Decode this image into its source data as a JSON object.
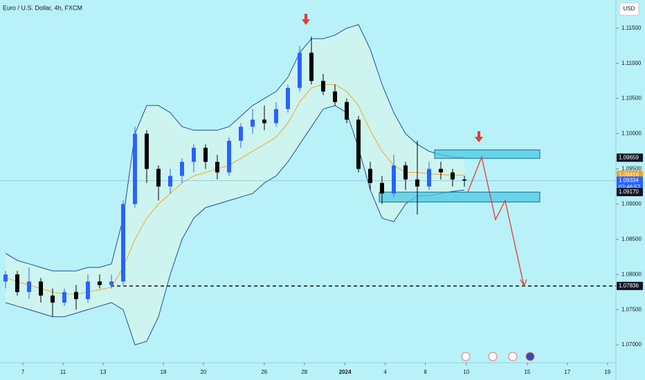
{
  "chart_data": {
    "type": "candlestick",
    "title": "Euro / U.S. Dollar, 4h, FXCM",
    "currency": "USD",
    "ylim": [
      1.065,
      1.119
    ],
    "yticks": [
      {
        "value": 1.07,
        "label": "1.07000"
      },
      {
        "value": 1.075,
        "label": "1.07500"
      },
      {
        "value": 1.08,
        "label": "1.08000"
      },
      {
        "value": 1.085,
        "label": "1.08500"
      },
      {
        "value": 1.09,
        "label": "1.09000"
      },
      {
        "value": 1.095,
        "label": "1.09500"
      },
      {
        "value": 1.1,
        "label": "1.10000"
      },
      {
        "value": 1.105,
        "label": "1.10500"
      },
      {
        "value": 1.11,
        "label": "1.11000"
      },
      {
        "value": 1.115,
        "label": "1.11500"
      }
    ],
    "xlim": [
      0,
      30.7
    ],
    "xticks": [
      {
        "value": 1.14,
        "label": "7"
      },
      {
        "value": 3.14,
        "label": "11"
      },
      {
        "value": 5.14,
        "label": "13"
      },
      {
        "value": 8.14,
        "label": "18"
      },
      {
        "value": 10.14,
        "label": "20"
      },
      {
        "value": 13.17,
        "label": "26"
      },
      {
        "value": 15.17,
        "label": "28"
      },
      {
        "value": 17.2,
        "label": "2024"
      },
      {
        "value": 19.2,
        "label": "4"
      },
      {
        "value": 21.2,
        "label": "8"
      },
      {
        "value": 23.24,
        "label": "10"
      },
      {
        "value": 26.28,
        "label": "15"
      },
      {
        "value": 28.28,
        "label": "17"
      },
      {
        "value": 30.28,
        "label": "19"
      }
    ],
    "up_color": "#2962ff",
    "down_color": "#000000",
    "open": [
      1.079,
      1.08,
      1.0775,
      1.079,
      1.077,
      1.076,
      1.0775,
      1.0765,
      1.079,
      1.0785,
      1.079,
      1.09,
      1.1,
      1.095,
      1.0925,
      1.094,
      1.096,
      1.098,
      1.096,
      1.0945,
      1.099,
      1.101,
      1.102,
      1.1015,
      1.1035,
      1.1065,
      1.1115,
      1.1075,
      1.106,
      1.1045,
      1.102,
      1.095,
      1.093,
      1.0915,
      1.0955,
      1.0935,
      1.0925,
      1.095,
      1.0945,
      1.0935
    ],
    "high": [
      1.0805,
      1.0805,
      1.081,
      1.0795,
      1.078,
      1.078,
      1.0785,
      1.08,
      1.08,
      1.08,
      1.0905,
      1.101,
      1.1005,
      1.0955,
      1.095,
      1.0965,
      1.0985,
      1.0985,
      1.097,
      1.0995,
      1.1015,
      1.1035,
      1.104,
      1.1045,
      1.107,
      1.1125,
      1.1138,
      1.1085,
      1.107,
      1.105,
      1.1025,
      1.096,
      1.094,
      1.097,
      1.096,
      1.099,
      1.096,
      1.096,
      1.095,
      1.094
    ],
    "low": [
      1.078,
      1.077,
      1.0765,
      1.076,
      1.074,
      1.0755,
      1.075,
      1.076,
      1.078,
      1.078,
      1.0785,
      1.0895,
      1.093,
      1.0905,
      1.0915,
      1.093,
      1.0945,
      1.095,
      1.0935,
      1.094,
      1.098,
      1.1,
      1.1005,
      1.101,
      1.103,
      1.106,
      1.107,
      1.1055,
      1.104,
      1.1015,
      1.0945,
      1.092,
      1.09,
      1.091,
      1.092,
      1.0885,
      1.092,
      1.0935,
      1.0925,
      1.0925
    ],
    "close": [
      1.08,
      1.0775,
      1.079,
      1.077,
      1.076,
      1.0775,
      1.0765,
      1.079,
      1.0785,
      1.079,
      1.09,
      1.1,
      1.095,
      1.0925,
      1.094,
      1.096,
      1.098,
      1.096,
      1.0945,
      1.099,
      1.101,
      1.102,
      1.1015,
      1.1035,
      1.1065,
      1.1115,
      1.1075,
      1.106,
      1.1045,
      1.102,
      1.095,
      1.093,
      1.0915,
      1.0955,
      1.0935,
      1.0925,
      1.095,
      1.0945,
      1.0935,
      1.09334
    ],
    "bands": {
      "upper": [
        1.083,
        1.082,
        1.0815,
        1.081,
        1.0805,
        1.0805,
        1.0805,
        1.081,
        1.081,
        1.0815,
        1.088,
        1.1,
        1.104,
        1.104,
        1.103,
        1.101,
        1.1005,
        1.1005,
        1.1005,
        1.101,
        1.1025,
        1.104,
        1.105,
        1.106,
        1.108,
        1.1115,
        1.1135,
        1.1135,
        1.114,
        1.115,
        1.1155,
        1.112,
        1.107,
        1.103,
        1.1,
        1.0985,
        1.0975,
        1.097,
        1.0967,
        1.0966
      ],
      "basis": [
        1.0795,
        1.079,
        1.0785,
        1.078,
        1.0775,
        1.0772,
        1.0772,
        1.0775,
        1.0778,
        1.0782,
        1.081,
        1.085,
        1.088,
        1.09,
        1.0915,
        1.093,
        1.094,
        1.0945,
        1.095,
        1.0955,
        1.0965,
        1.0975,
        1.0985,
        1.0995,
        1.1015,
        1.1045,
        1.1065,
        1.107,
        1.107,
        1.106,
        1.104,
        1.1005,
        1.0975,
        1.0955,
        1.0945,
        1.0945,
        1.0943,
        1.0942,
        1.0941,
        1.0941
      ],
      "lower": [
        1.076,
        1.0755,
        1.075,
        1.0745,
        1.074,
        1.074,
        1.0745,
        1.075,
        1.0755,
        1.076,
        1.075,
        1.07,
        1.0705,
        1.074,
        1.08,
        1.085,
        1.088,
        1.0895,
        1.09,
        1.0905,
        1.091,
        1.0915,
        1.093,
        1.094,
        1.096,
        1.0985,
        1.101,
        1.1035,
        1.104,
        1.103,
        1.098,
        1.092,
        1.088,
        1.0875,
        1.09,
        1.0912,
        1.0912,
        1.0915,
        1.0918,
        1.092
      ]
    },
    "zones": [
      {
        "top": 1.0977,
        "bottom": 1.0965
      },
      {
        "top": 1.0917,
        "bottom": 1.0903
      }
    ],
    "target_line": 1.07836,
    "projection": [
      1.0917,
      1.0967,
      1.0878,
      1.0905,
      1.0784
    ],
    "price_tags": [
      {
        "value": 1.09659,
        "label": "1.09659",
        "color": "#131722"
      },
      {
        "value": 1.09414,
        "label": "1.09414",
        "color": "#f7a21b"
      },
      {
        "value": 1.09334,
        "label": "1.09334",
        "color": "#2962ff",
        "timer": "02:46:57"
      },
      {
        "value": 1.0917,
        "label": "1.09170",
        "color": "#131722"
      },
      {
        "value": 1.07836,
        "label": "1.07836",
        "color": "#131722"
      }
    ]
  }
}
